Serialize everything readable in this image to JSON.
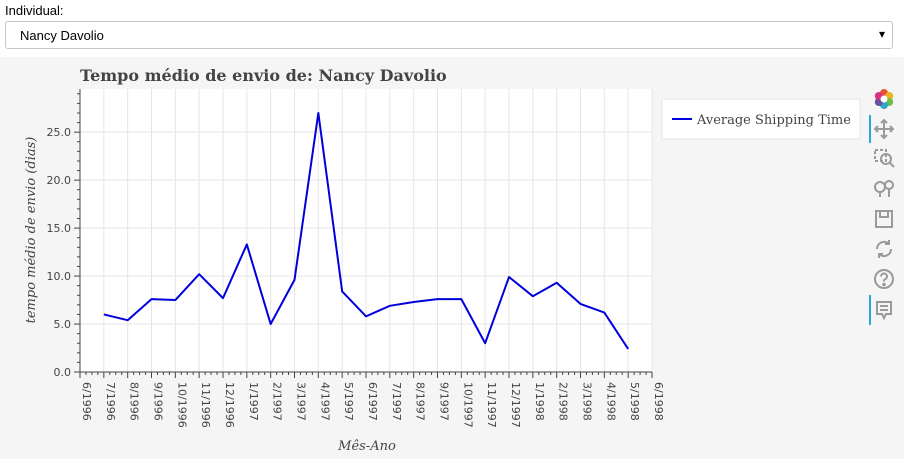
{
  "selector": {
    "label": "Individual:",
    "value": "Nancy Davolio",
    "caret": "▾"
  },
  "chart_data": {
    "type": "line",
    "title": "Tempo médio de envio de: Nancy Davolio",
    "xlabel": "Mês-Ano",
    "ylabel": "tempo médio de envio (dias)",
    "x_ticks": [
      "6/1996",
      "7/1996",
      "8/1996",
      "9/1996",
      "10/1996",
      "11/1996",
      "12/1996",
      "1/1997",
      "2/1997",
      "3/1997",
      "4/1997",
      "5/1997",
      "6/1997",
      "7/1997",
      "8/1997",
      "9/1997",
      "10/1997",
      "11/1997",
      "12/1997",
      "1/1998",
      "2/1998",
      "3/1998",
      "4/1998",
      "5/1998",
      "6/1998"
    ],
    "y_ticks": [
      "0.0",
      "5.0",
      "10.0",
      "15.0",
      "20.0",
      "25.0"
    ],
    "ylim": [
      0,
      29.5
    ],
    "grid": true,
    "legend_position": "top-right",
    "series": [
      {
        "name": "Average Shipping Time",
        "color": "#0000dd",
        "x": [
          "7/1996",
          "8/1996",
          "9/1996",
          "10/1996",
          "11/1996",
          "12/1996",
          "1/1997",
          "2/1997",
          "3/1997",
          "4/1997",
          "5/1997",
          "6/1997",
          "7/1997",
          "8/1997",
          "9/1997",
          "10/1997",
          "11/1997",
          "12/1997",
          "1/1998",
          "2/1998",
          "3/1998",
          "4/1998",
          "5/1998"
        ],
        "values": [
          6.0,
          5.4,
          7.6,
          7.5,
          10.2,
          7.7,
          13.3,
          5.0,
          9.6,
          27.0,
          8.4,
          5.8,
          6.9,
          7.3,
          7.6,
          7.6,
          3.0,
          9.9,
          7.9,
          9.3,
          7.1,
          6.2,
          2.4
        ]
      }
    ]
  },
  "toolbar": {
    "tools": [
      "bokeh-logo-icon",
      "pan-icon",
      "box-zoom-icon",
      "wheel-zoom-icon",
      "save-icon",
      "reset-icon",
      "help-icon",
      "hover-icon"
    ]
  }
}
